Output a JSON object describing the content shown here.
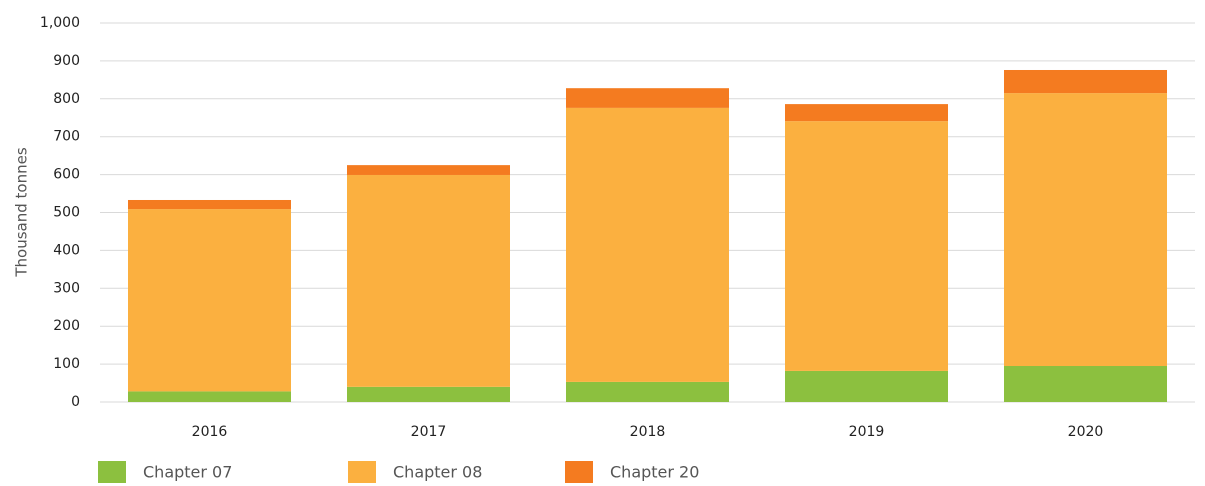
{
  "chart_data": {
    "type": "stacked_bar",
    "y_label": "Thousand tonnes",
    "categories": [
      "2016",
      "2017",
      "2018",
      "2019",
      "2020"
    ],
    "series": [
      {
        "name": "Chapter 07",
        "color": "#8cc03f",
        "values": [
          28,
          40,
          53,
          82,
          95
        ]
      },
      {
        "name": "Chapter 08",
        "color": "#fbb040",
        "values": [
          481,
          559,
          723,
          659,
          720
        ]
      },
      {
        "name": "Chapter 20",
        "color": "#f47b20",
        "values": [
          24,
          26,
          52,
          45,
          61
        ]
      }
    ],
    "ylim": [
      0,
      1000
    ],
    "yticks": [
      0,
      100,
      200,
      300,
      400,
      500,
      600,
      700,
      800,
      900,
      {
        "value": 1000,
        "label": "1,000"
      }
    ],
    "grid": true
  }
}
